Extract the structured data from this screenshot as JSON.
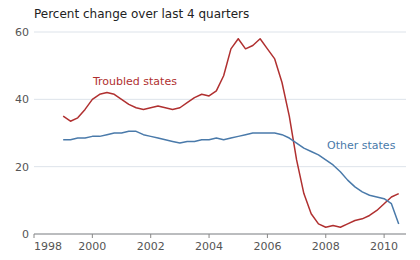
{
  "chart_data": {
    "type": "line",
    "title": "Percent change over last 4 quarters",
    "x": [
      1999.0,
      1999.25,
      1999.5,
      1999.75,
      2000.0,
      2000.25,
      2000.5,
      2000.75,
      2001.0,
      2001.25,
      2001.5,
      2001.75,
      2002.0,
      2002.25,
      2002.5,
      2002.75,
      2003.0,
      2003.25,
      2003.5,
      2003.75,
      2004.0,
      2004.25,
      2004.5,
      2004.75,
      2005.0,
      2005.25,
      2005.5,
      2005.75,
      2006.0,
      2006.25,
      2006.5,
      2006.75,
      2007.0,
      2007.25,
      2007.5,
      2007.75,
      2008.0,
      2008.25,
      2008.5,
      2008.75,
      2009.0,
      2009.25,
      2009.5,
      2009.75,
      2010.0,
      2010.25,
      2010.5
    ],
    "series": [
      {
        "name": "Troubled states",
        "color": "#b03030",
        "values": [
          35.0,
          33.5,
          34.5,
          37.0,
          40.0,
          41.5,
          42.0,
          41.5,
          40.0,
          38.5,
          37.5,
          37.0,
          37.5,
          38.0,
          37.5,
          37.0,
          37.5,
          39.0,
          40.5,
          41.5,
          41.0,
          42.5,
          47.0,
          55.0,
          58.0,
          55.0,
          56.0,
          58.0,
          55.0,
          52.0,
          45.0,
          35.0,
          22.0,
          12.0,
          6.0,
          3.0,
          2.0,
          2.5,
          2.0,
          3.0,
          4.0,
          4.5,
          5.5,
          7.0,
          9.0,
          11.0,
          12.0
        ]
      },
      {
        "name": "Other states",
        "color": "#4a7aaa",
        "values": [
          28.0,
          28.0,
          28.5,
          28.5,
          29.0,
          29.0,
          29.5,
          30.0,
          30.0,
          30.5,
          30.5,
          29.5,
          29.0,
          28.5,
          28.0,
          27.5,
          27.0,
          27.5,
          27.5,
          28.0,
          28.0,
          28.5,
          28.0,
          28.5,
          29.0,
          29.5,
          30.0,
          30.0,
          30.0,
          30.0,
          29.5,
          28.5,
          27.0,
          25.5,
          24.5,
          23.5,
          22.0,
          20.5,
          18.5,
          16.0,
          14.0,
          12.5,
          11.5,
          11.0,
          10.5,
          9.0,
          3.0
        ]
      }
    ],
    "xlim": [
      1998,
      2010.75
    ],
    "xticks": [
      1998,
      2000,
      2002,
      2004,
      2006,
      2008,
      2010
    ],
    "ylim": [
      0,
      60
    ],
    "yticks": [
      0,
      20,
      40,
      60
    ],
    "grid": true
  }
}
